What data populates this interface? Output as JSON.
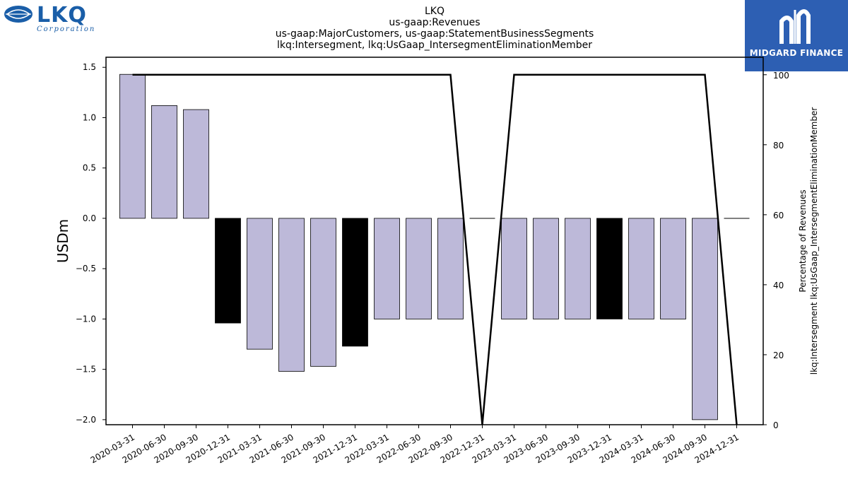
{
  "logos": {
    "left_text": "LKQ",
    "left_subtext": "Corporation",
    "right_text": "MIDGARD FINANCE"
  },
  "chart_data": {
    "type": "bar",
    "title_lines": [
      "LKQ",
      "us-gaap:Revenues",
      "us-gaap:MajorCustomers, us-gaap:StatementBusinessSegments",
      "lkq:Intersegment, lkq:UsGaap_IntersegmentEliminationMember"
    ],
    "ylabel": "USDm",
    "y2label_lines": [
      "Percentage of Revenues",
      "lkq:Intersegment lkq:UsGaap_IntersegmentEliminationMember"
    ],
    "categories": [
      "2020-03-31",
      "2020-06-30",
      "2020-09-30",
      "2020-12-31",
      "2021-03-31",
      "2021-06-30",
      "2021-09-30",
      "2021-12-31",
      "2022-03-31",
      "2022-06-30",
      "2022-09-30",
      "2022-12-31",
      "2023-03-31",
      "2023-06-30",
      "2023-09-30",
      "2023-12-31",
      "2024-03-31",
      "2024-06-30",
      "2024-09-30",
      "2024-12-31"
    ],
    "values": [
      1.43,
      1.12,
      1.08,
      -1.04,
      -1.3,
      -1.52,
      -1.47,
      -1.27,
      -1.0,
      -1.0,
      -1.0,
      0,
      -1.0,
      -1.0,
      -1.0,
      -1.0,
      -1.0,
      -1.0,
      -2.0,
      0
    ],
    "bar_colors": [
      "#bdb9d9",
      "#bdb9d9",
      "#bdb9d9",
      "#000000",
      "#bdb9d9",
      "#bdb9d9",
      "#bdb9d9",
      "#000000",
      "#bdb9d9",
      "#bdb9d9",
      "#bdb9d9",
      "#bdb9d9",
      "#bdb9d9",
      "#bdb9d9",
      "#bdb9d9",
      "#000000",
      "#bdb9d9",
      "#bdb9d9",
      "#bdb9d9",
      "#bdb9d9"
    ],
    "percentage": [
      100,
      100,
      100,
      100,
      100,
      100,
      100,
      100,
      100,
      100,
      100,
      0,
      100,
      100,
      100,
      100,
      100,
      100,
      100,
      0
    ],
    "ylim": [
      -2.05,
      1.6
    ],
    "yticks": [
      -2.0,
      -1.5,
      -1.0,
      -0.5,
      0.0,
      0.5,
      1.0,
      1.5
    ],
    "y2lim": [
      0,
      105
    ],
    "y2ticks": [
      0,
      20,
      40,
      60,
      80,
      100
    ],
    "grid": false,
    "line_color": "#000000"
  }
}
